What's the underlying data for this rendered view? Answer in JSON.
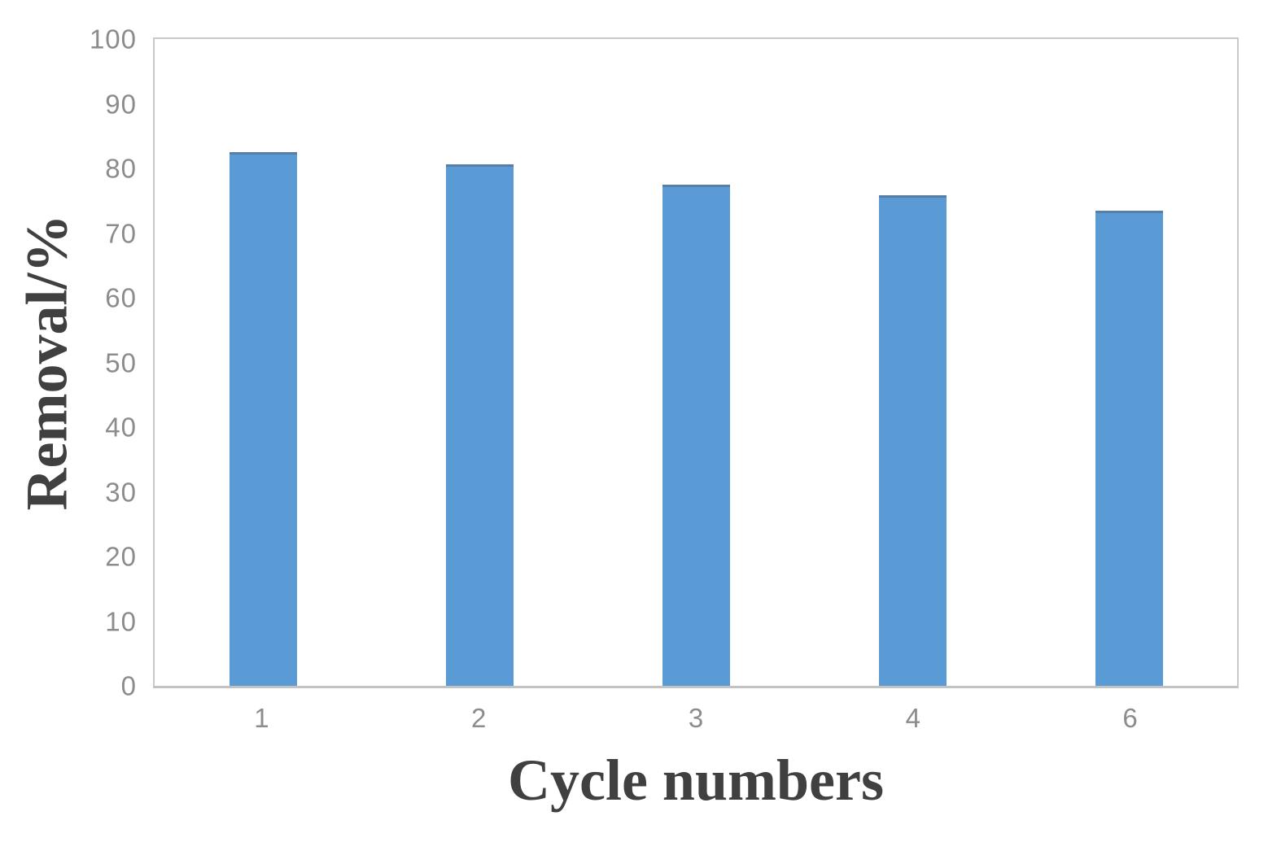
{
  "chart_data": {
    "type": "bar",
    "categories": [
      "1",
      "2",
      "3",
      "4",
      "6"
    ],
    "values": [
      82.5,
      80.6,
      77.5,
      75.8,
      73.5
    ],
    "title": "",
    "xlabel": "Cycle numbers",
    "ylabel": "Removal/%",
    "ylim": [
      0,
      100
    ],
    "yticks": [
      0,
      10,
      20,
      30,
      40,
      50,
      60,
      70,
      80,
      90,
      100
    ],
    "grid": false,
    "legend_position": "none",
    "plot_border": true,
    "colors": {
      "bar": "#5B9BD5",
      "bar_top_edge": "#587da6",
      "axis_line": "#c9c9c9",
      "axis_line_bottom": "#c2c2c2",
      "tick_label": "#8c8c8c",
      "axis_title": "#404040",
      "background": "#ffffff"
    }
  }
}
